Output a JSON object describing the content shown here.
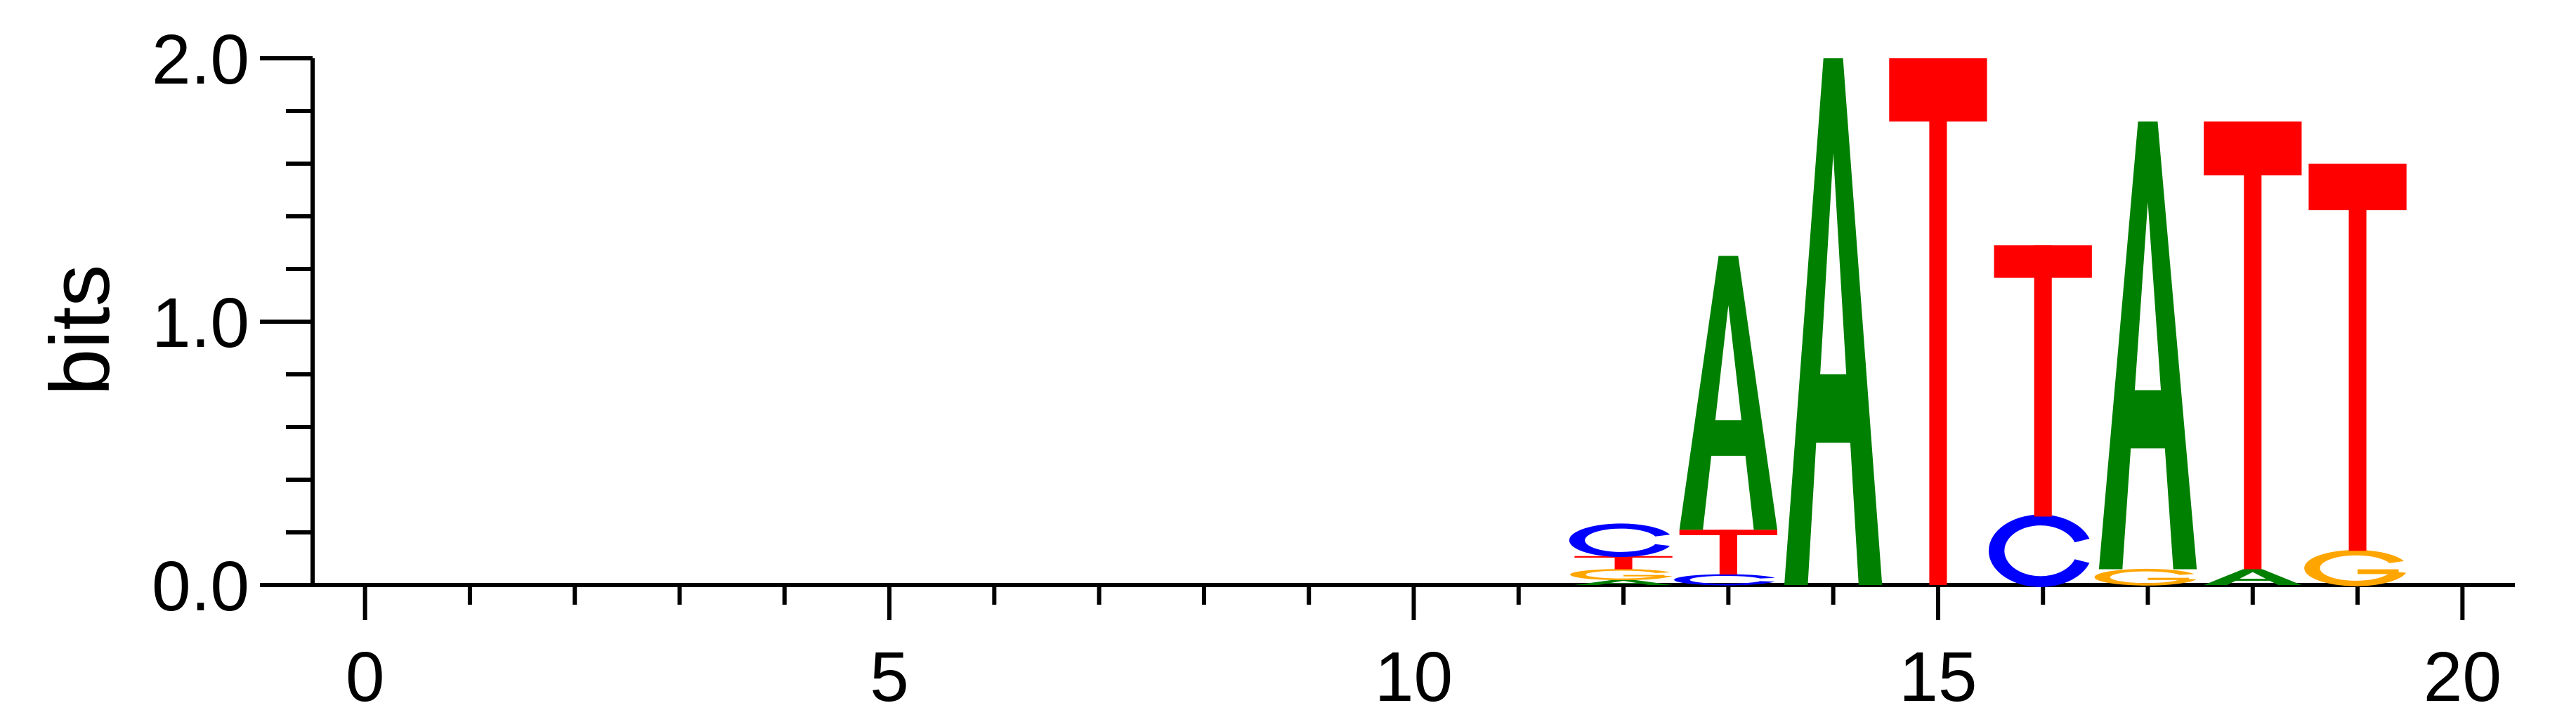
{
  "chart_data": {
    "type": "sequence-logo",
    "title": "",
    "xlabel": "",
    "ylabel": "bits",
    "xlim": [
      -0.5,
      20.5
    ],
    "ylim": [
      0,
      2.0
    ],
    "x_ticks": [
      0,
      5,
      10,
      15,
      20
    ],
    "x_tick_labels": [
      "0",
      "5",
      "10",
      "15",
      "20"
    ],
    "y_ticks": [
      0.0,
      1.0,
      2.0
    ],
    "y_tick_labels": [
      "0.0",
      "1.0",
      "2.0"
    ],
    "grid": false,
    "colors": {
      "A": "#008000",
      "C": "#0000ff",
      "G": "#ffa500",
      "T": "#ff0000"
    },
    "positions": [
      {
        "x": 12,
        "letters": [
          {
            "base": "A",
            "bits": 0.02
          },
          {
            "base": "G",
            "bits": 0.04
          },
          {
            "base": "T",
            "bits": 0.05
          },
          {
            "base": "C",
            "bits": 0.12
          }
        ]
      },
      {
        "x": 13,
        "letters": [
          {
            "base": "C",
            "bits": 0.04
          },
          {
            "base": "T",
            "bits": 0.17
          },
          {
            "base": "A",
            "bits": 1.04
          }
        ]
      },
      {
        "x": 14,
        "letters": [
          {
            "base": "A",
            "bits": 2.0
          }
        ]
      },
      {
        "x": 15,
        "letters": [
          {
            "base": "T",
            "bits": 2.0
          }
        ]
      },
      {
        "x": 16,
        "letters": [
          {
            "base": "C",
            "bits": 0.26
          },
          {
            "base": "T",
            "bits": 1.03
          }
        ]
      },
      {
        "x": 17,
        "letters": [
          {
            "base": "G",
            "bits": 0.06
          },
          {
            "base": "A",
            "bits": 1.7
          }
        ]
      },
      {
        "x": 18,
        "letters": [
          {
            "base": "A",
            "bits": 0.06
          },
          {
            "base": "T",
            "bits": 1.7
          }
        ]
      },
      {
        "x": 19,
        "letters": [
          {
            "base": "G",
            "bits": 0.13
          },
          {
            "base": "T",
            "bits": 1.47
          }
        ]
      }
    ]
  }
}
